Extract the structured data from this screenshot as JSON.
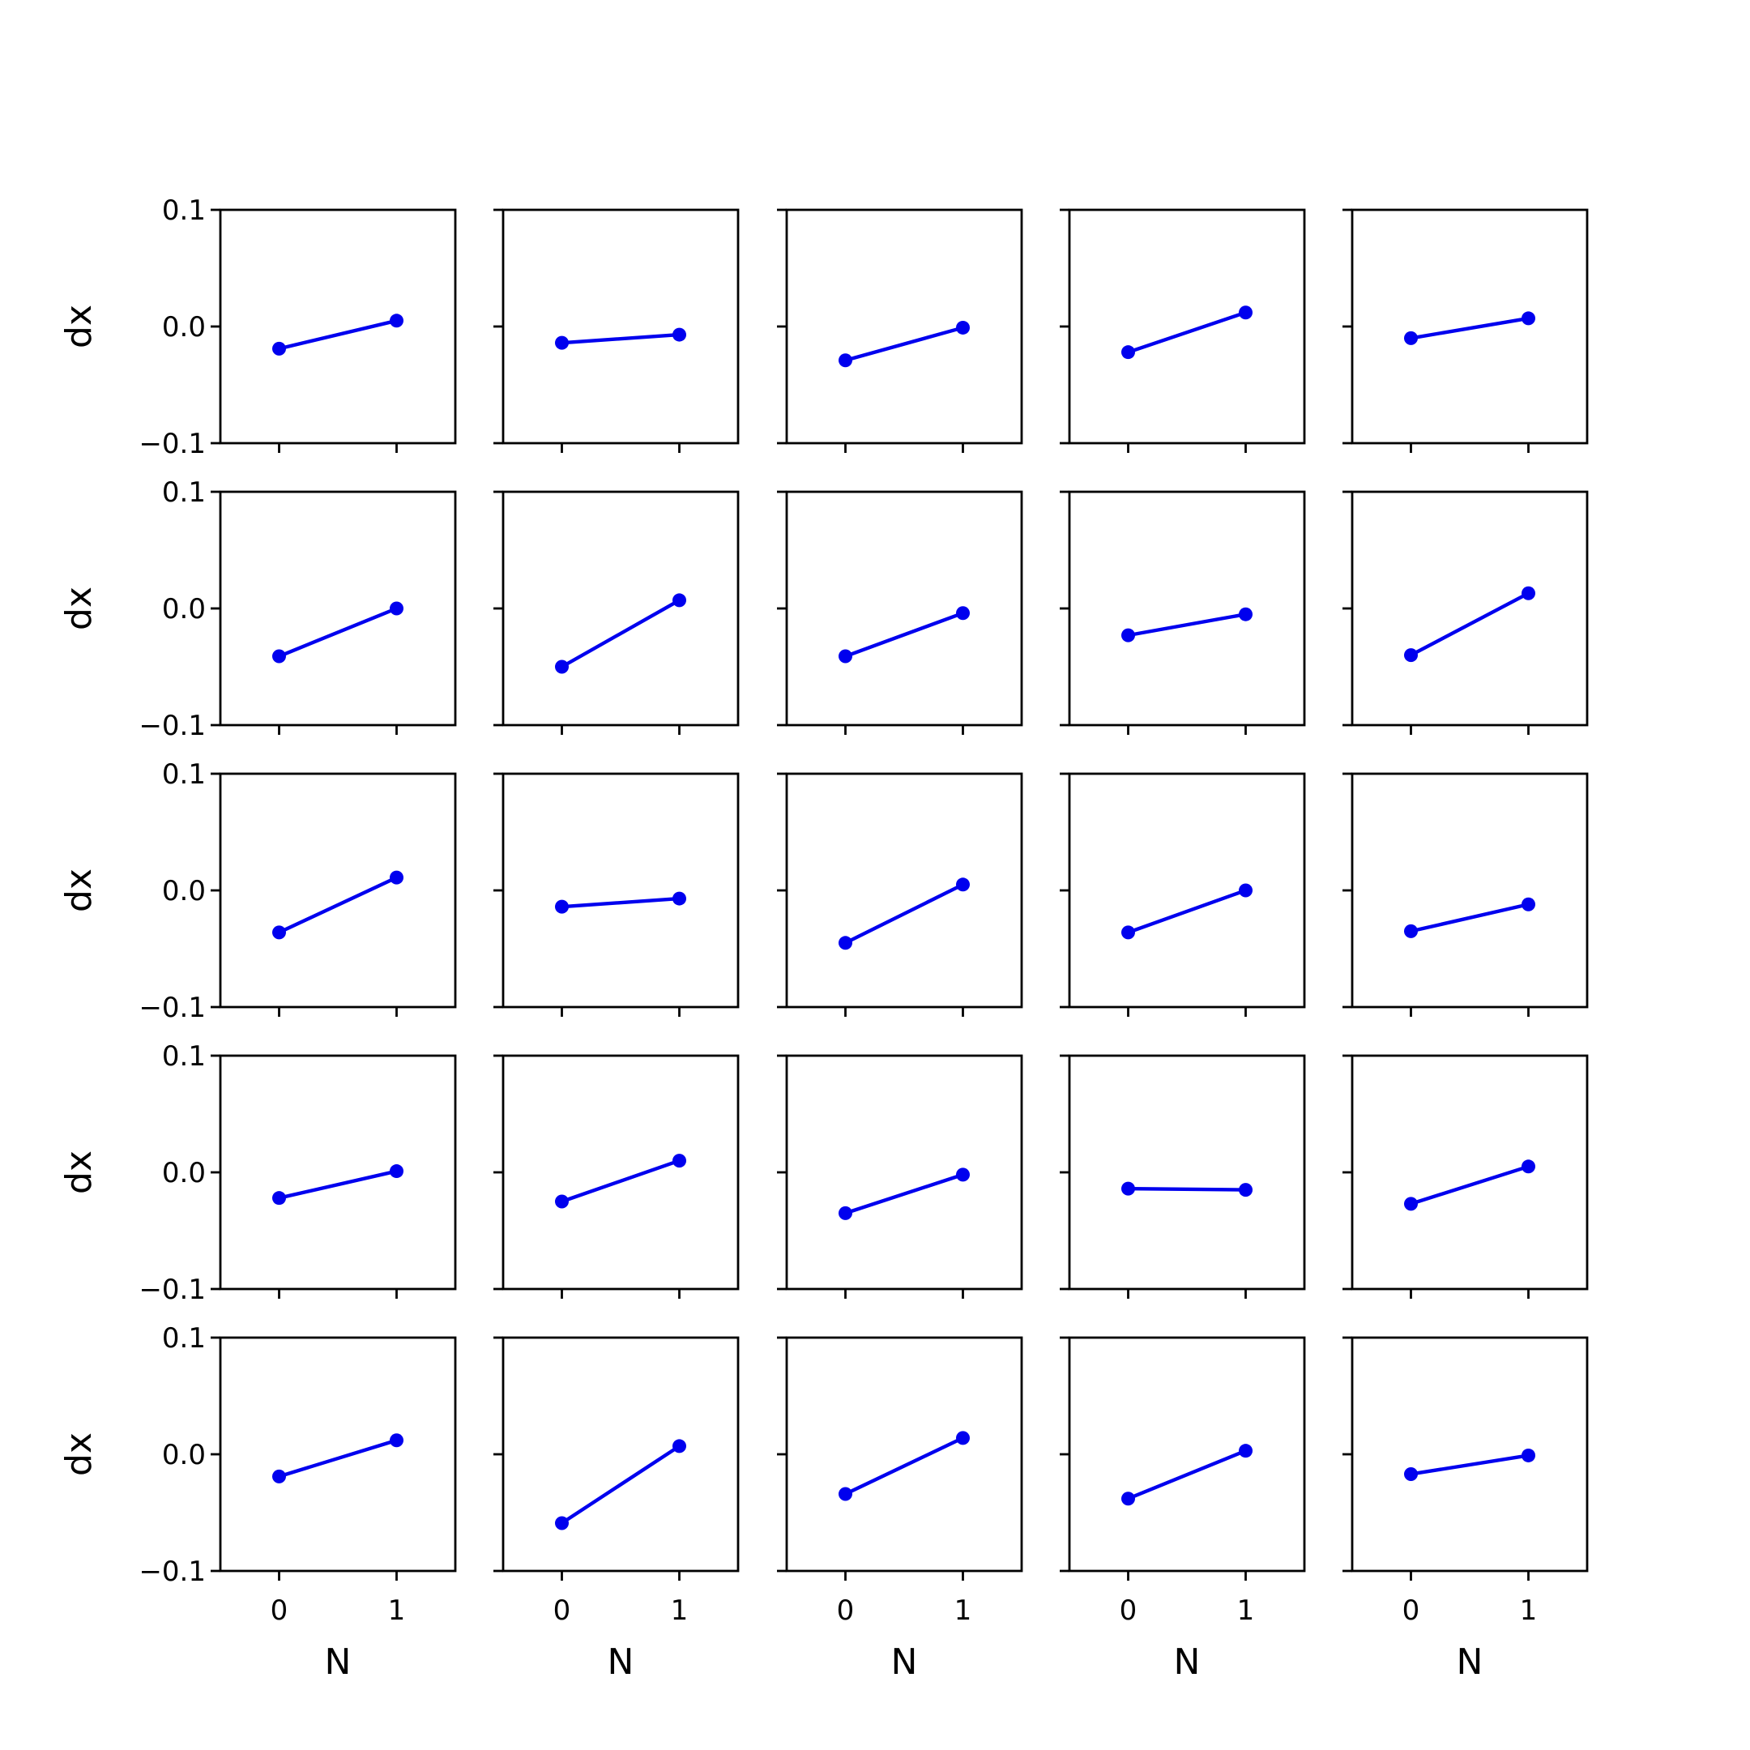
{
  "chart_data": {
    "type": "line",
    "layout": "5x5 small multiples",
    "xlabel": "N",
    "ylabel": "dx",
    "xticks": [
      0,
      1
    ],
    "yticks": [
      -0.1,
      0.0,
      0.1
    ],
    "ytick_labels": [
      "−0.1",
      "0.0",
      "0.1"
    ],
    "xlim": [
      -0.5,
      1.5
    ],
    "ylim": [
      -0.1,
      0.1
    ],
    "grid": false,
    "line_color": "#0000ee",
    "marker": "circle",
    "panels": [
      {
        "x": [
          0,
          1
        ],
        "y": [
          -0.019,
          0.005
        ]
      },
      {
        "x": [
          0,
          1
        ],
        "y": [
          -0.014,
          -0.007
        ]
      },
      {
        "x": [
          0,
          1
        ],
        "y": [
          -0.029,
          -0.001
        ]
      },
      {
        "x": [
          0,
          1
        ],
        "y": [
          -0.022,
          0.012
        ]
      },
      {
        "x": [
          0,
          1
        ],
        "y": [
          -0.01,
          0.007
        ]
      },
      {
        "x": [
          0,
          1
        ],
        "y": [
          -0.041,
          0.0
        ]
      },
      {
        "x": [
          0,
          1
        ],
        "y": [
          -0.05,
          0.007
        ]
      },
      {
        "x": [
          0,
          1
        ],
        "y": [
          -0.041,
          -0.004
        ]
      },
      {
        "x": [
          0,
          1
        ],
        "y": [
          -0.023,
          -0.005
        ]
      },
      {
        "x": [
          0,
          1
        ],
        "y": [
          -0.04,
          0.013
        ]
      },
      {
        "x": [
          0,
          1
        ],
        "y": [
          -0.036,
          0.011
        ]
      },
      {
        "x": [
          0,
          1
        ],
        "y": [
          -0.014,
          -0.007
        ]
      },
      {
        "x": [
          0,
          1
        ],
        "y": [
          -0.045,
          0.005
        ]
      },
      {
        "x": [
          0,
          1
        ],
        "y": [
          -0.036,
          0.0
        ]
      },
      {
        "x": [
          0,
          1
        ],
        "y": [
          -0.035,
          -0.012
        ]
      },
      {
        "x": [
          0,
          1
        ],
        "y": [
          -0.022,
          0.001
        ]
      },
      {
        "x": [
          0,
          1
        ],
        "y": [
          -0.025,
          0.01
        ]
      },
      {
        "x": [
          0,
          1
        ],
        "y": [
          -0.035,
          -0.002
        ]
      },
      {
        "x": [
          0,
          1
        ],
        "y": [
          -0.014,
          -0.015
        ]
      },
      {
        "x": [
          0,
          1
        ],
        "y": [
          -0.027,
          0.005
        ]
      },
      {
        "x": [
          0,
          1
        ],
        "y": [
          -0.019,
          0.012
        ]
      },
      {
        "x": [
          0,
          1
        ],
        "y": [
          -0.059,
          0.007
        ]
      },
      {
        "x": [
          0,
          1
        ],
        "y": [
          -0.034,
          0.014
        ]
      },
      {
        "x": [
          0,
          1
        ],
        "y": [
          -0.038,
          0.003
        ]
      },
      {
        "x": [
          0,
          1
        ],
        "y": [
          -0.017,
          -0.001
        ]
      }
    ]
  }
}
